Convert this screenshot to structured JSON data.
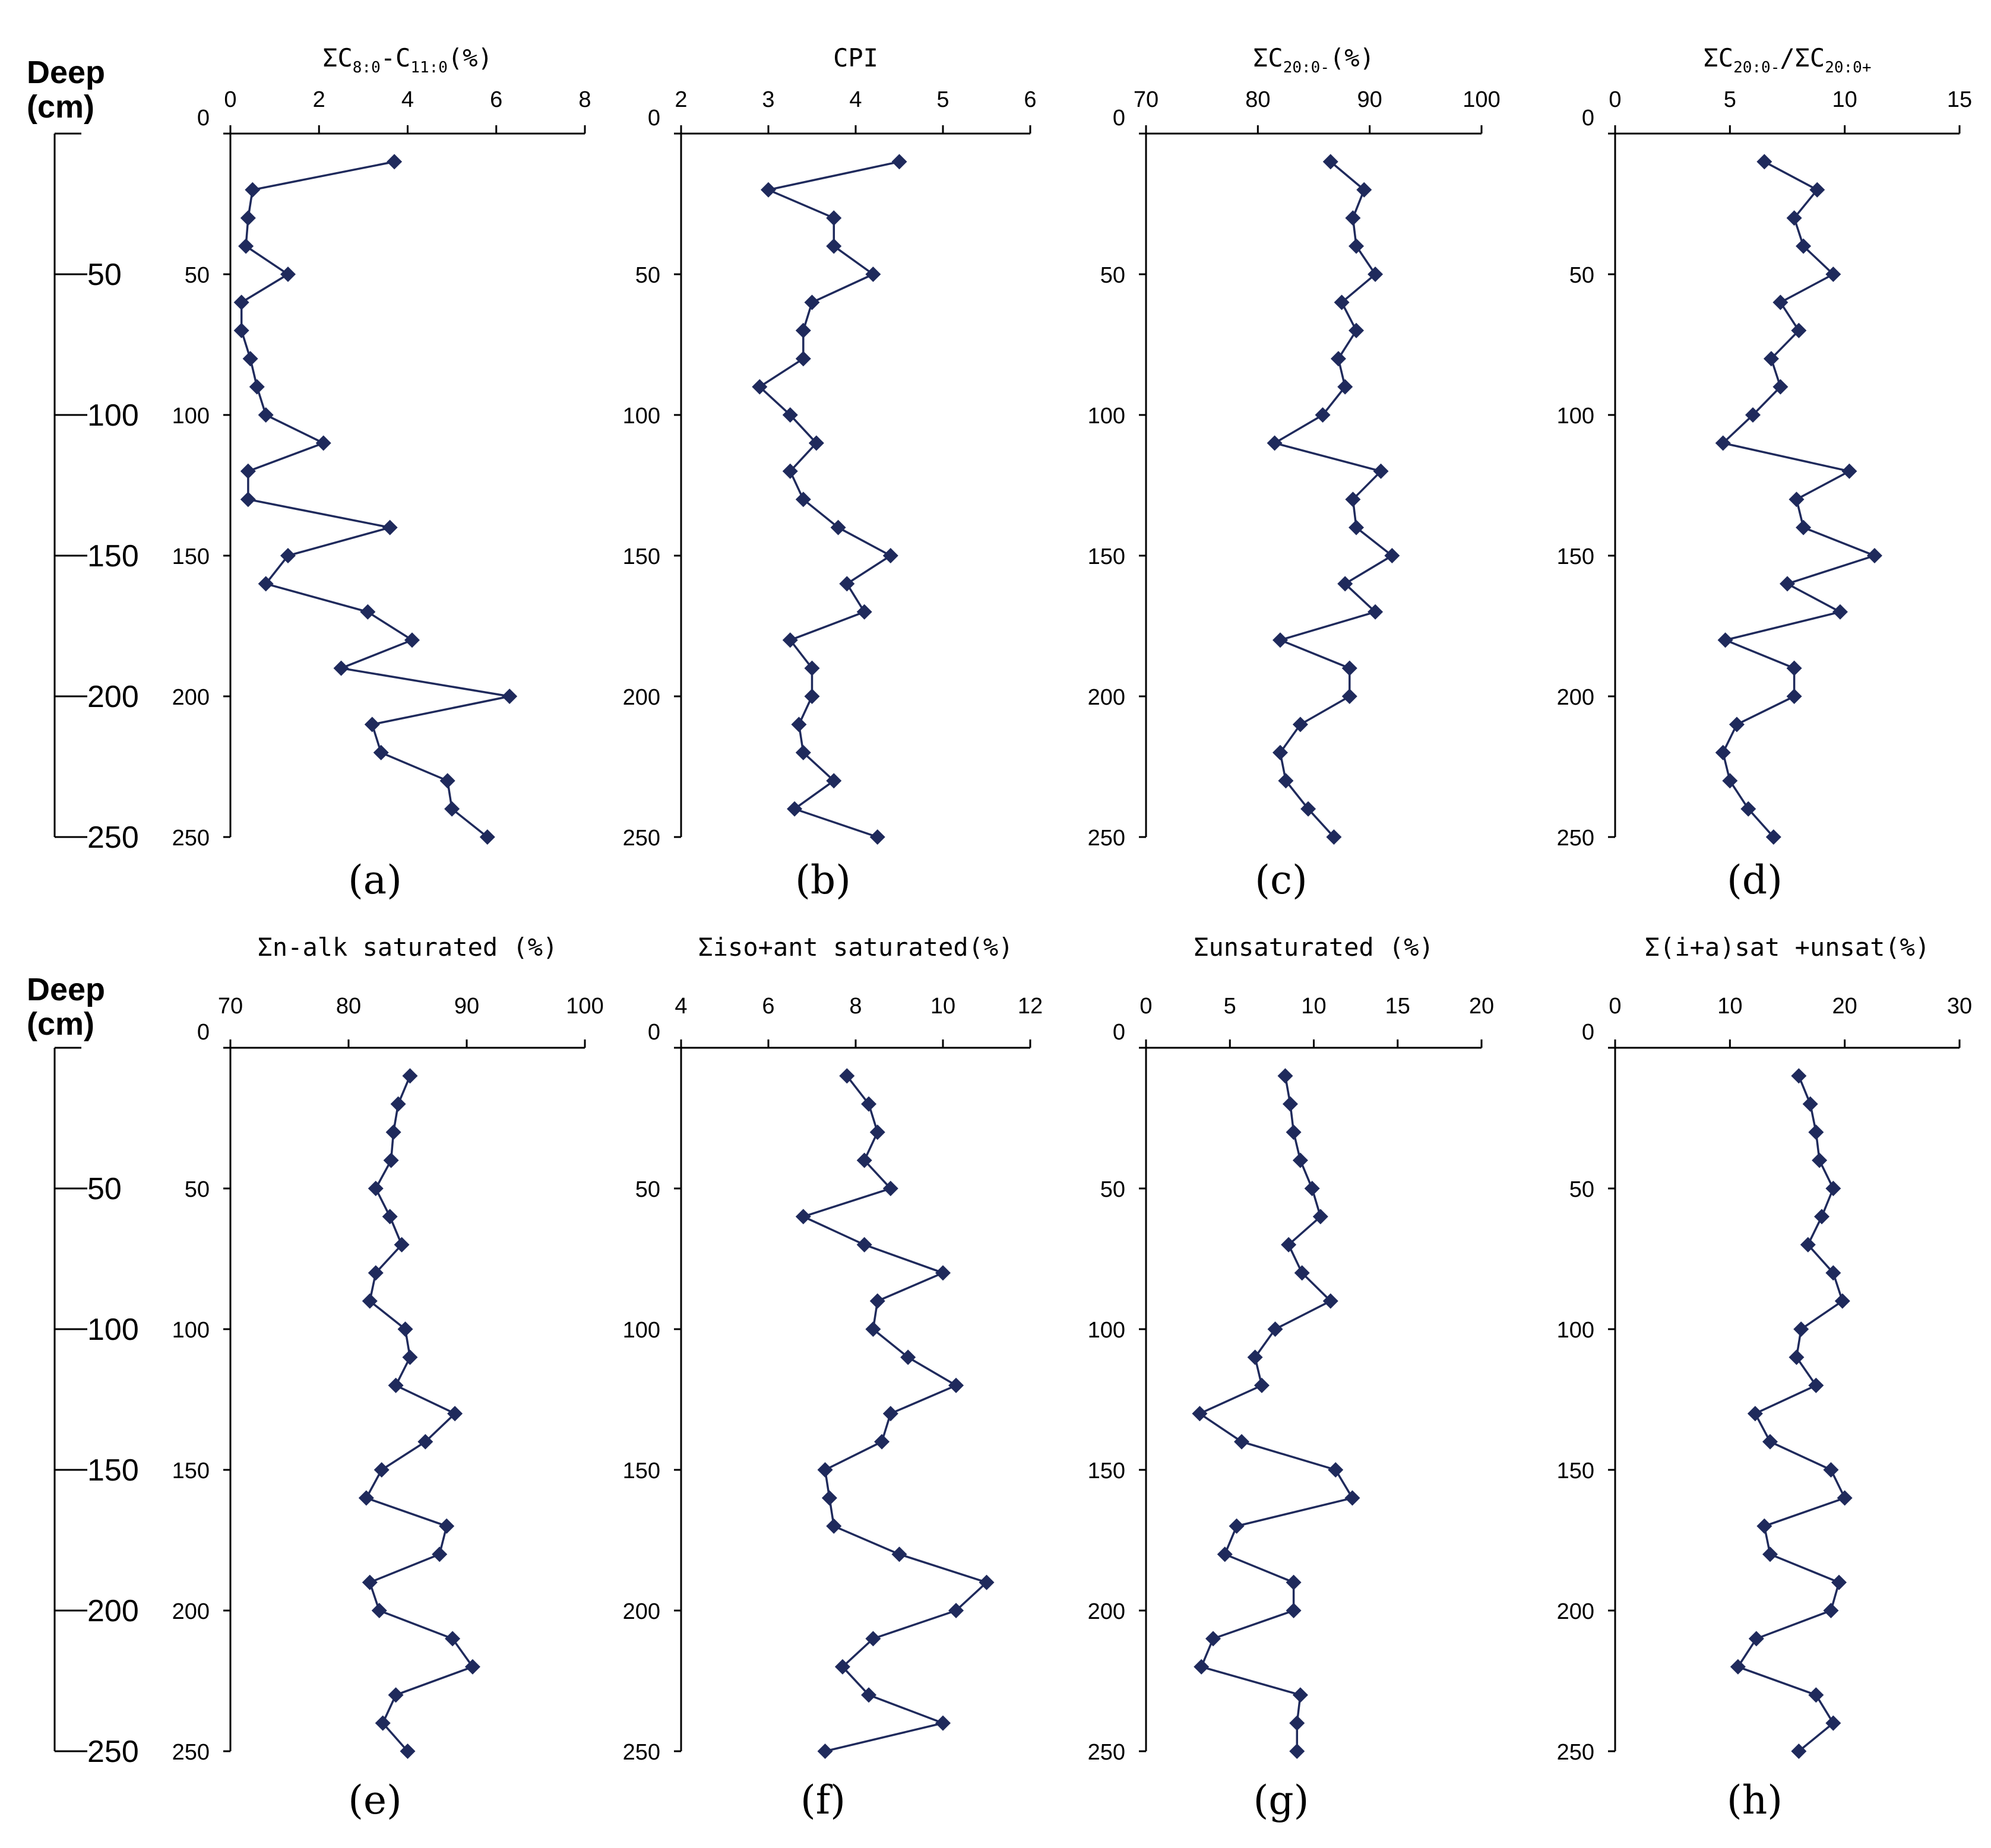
{
  "depth_axis": {
    "title_line1": "Deep",
    "title_line2": "(cm)",
    "ticks": [
      50,
      100,
      150,
      200,
      250
    ]
  },
  "colors": {
    "series": "#1f2a5c",
    "axis": "#000000"
  },
  "chart_data": [
    {
      "type": "line",
      "id": "a",
      "letter": "(a)",
      "title": "ΣC8:0-C11:0(%)",
      "title_parts": [
        {
          "t": "ΣC"
        },
        {
          "t": "8:0",
          "sub": true
        },
        {
          "t": "-C"
        },
        {
          "t": "11:0",
          "sub": true
        },
        {
          "t": "(%)"
        }
      ],
      "xlim": [
        0,
        8
      ],
      "xticks": [
        0,
        2,
        4,
        6,
        8
      ],
      "ylim": [
        0,
        250
      ],
      "yticks": [
        0,
        50,
        100,
        150,
        200,
        250
      ],
      "depth": [
        10,
        20,
        30,
        40,
        50,
        60,
        70,
        80,
        90,
        100,
        110,
        120,
        130,
        140,
        150,
        160,
        170,
        180,
        190,
        200,
        210,
        220,
        230,
        240,
        250
      ],
      "values": [
        3.7,
        0.5,
        0.4,
        0.35,
        1.3,
        0.25,
        0.25,
        0.45,
        0.6,
        0.8,
        2.1,
        0.4,
        0.4,
        3.6,
        1.3,
        0.8,
        3.1,
        4.1,
        2.5,
        6.3,
        3.2,
        3.4,
        4.9,
        5.0,
        5.8
      ]
    },
    {
      "type": "line",
      "id": "b",
      "letter": "(b)",
      "title": "CPI",
      "title_parts": [
        {
          "t": "CPI"
        }
      ],
      "xlim": [
        2,
        6
      ],
      "xticks": [
        2,
        3,
        4,
        5,
        6
      ],
      "ylim": [
        0,
        250
      ],
      "yticks": [
        0,
        50,
        100,
        150,
        200,
        250
      ],
      "depth": [
        10,
        20,
        30,
        40,
        50,
        60,
        70,
        80,
        90,
        100,
        110,
        120,
        130,
        140,
        150,
        160,
        170,
        180,
        190,
        200,
        210,
        220,
        230,
        240,
        250
      ],
      "values": [
        4.5,
        3.0,
        3.75,
        3.75,
        4.2,
        3.5,
        3.4,
        3.4,
        2.9,
        3.25,
        3.55,
        3.25,
        3.4,
        3.8,
        4.4,
        3.9,
        4.1,
        3.25,
        3.5,
        3.5,
        3.35,
        3.4,
        3.75,
        3.3,
        4.25
      ]
    },
    {
      "type": "line",
      "id": "c",
      "letter": "(c)",
      "title": "ΣC20:0-(%)",
      "title_parts": [
        {
          "t": "ΣC"
        },
        {
          "t": "20:0-",
          "sub": true
        },
        {
          "t": "(%)"
        }
      ],
      "xlim": [
        70,
        100
      ],
      "xticks": [
        70,
        80,
        90,
        100
      ],
      "ylim": [
        0,
        250
      ],
      "yticks": [
        0,
        50,
        100,
        150,
        200,
        250
      ],
      "depth": [
        10,
        20,
        30,
        40,
        50,
        60,
        70,
        80,
        90,
        100,
        110,
        120,
        130,
        140,
        150,
        160,
        170,
        180,
        190,
        200,
        210,
        220,
        230,
        240,
        250
      ],
      "values": [
        86.5,
        89.5,
        88.5,
        88.8,
        90.5,
        87.5,
        88.8,
        87.2,
        87.8,
        85.8,
        81.5,
        91.0,
        88.5,
        88.8,
        92.0,
        87.8,
        90.5,
        82.0,
        88.2,
        88.2,
        83.8,
        82.0,
        82.5,
        84.5,
        86.8
      ]
    },
    {
      "type": "line",
      "id": "d",
      "letter": "(d)",
      "title": "ΣC20:0-/ΣC20:0+",
      "title_parts": [
        {
          "t": "ΣC"
        },
        {
          "t": "20:0-",
          "sub": true
        },
        {
          "t": "/ΣC"
        },
        {
          "t": "20:0+",
          "sub": true
        }
      ],
      "xlim": [
        0,
        15
      ],
      "xticks": [
        0,
        5,
        10,
        15
      ],
      "ylim": [
        0,
        250
      ],
      "yticks": [
        0,
        50,
        100,
        150,
        200,
        250
      ],
      "depth": [
        10,
        20,
        30,
        40,
        50,
        60,
        70,
        80,
        90,
        100,
        110,
        120,
        130,
        140,
        150,
        160,
        170,
        180,
        190,
        200,
        210,
        220,
        230,
        240,
        250
      ],
      "values": [
        6.5,
        8.8,
        7.8,
        8.2,
        9.5,
        7.2,
        8.0,
        6.8,
        7.2,
        6.0,
        4.7,
        10.2,
        7.9,
        8.2,
        11.3,
        7.5,
        9.8,
        4.8,
        7.8,
        7.8,
        5.3,
        4.7,
        5.0,
        5.8,
        6.9
      ]
    },
    {
      "type": "line",
      "id": "e",
      "letter": "(e)",
      "title": "Σn-alk saturated (%)",
      "title_parts": [
        {
          "t": "Σn-alk saturated (%)"
        }
      ],
      "xlim": [
        70,
        100
      ],
      "xticks": [
        70,
        80,
        90,
        100
      ],
      "ylim": [
        0,
        250
      ],
      "yticks": [
        0,
        50,
        100,
        150,
        200,
        250
      ],
      "depth": [
        10,
        20,
        30,
        40,
        50,
        60,
        70,
        80,
        90,
        100,
        110,
        120,
        130,
        140,
        150,
        160,
        170,
        180,
        190,
        200,
        210,
        220,
        230,
        240,
        250
      ],
      "values": [
        85.2,
        84.2,
        83.8,
        83.6,
        82.3,
        83.5,
        84.5,
        82.3,
        81.8,
        84.8,
        85.2,
        84.0,
        89.0,
        86.5,
        82.8,
        81.5,
        88.3,
        87.7,
        81.8,
        82.6,
        88.8,
        90.5,
        84.0,
        82.9,
        85.0
      ]
    },
    {
      "type": "line",
      "id": "f",
      "letter": "(f)",
      "title": "Σiso+ant saturated(%)",
      "title_parts": [
        {
          "t": "Σiso+ant saturated(%)"
        }
      ],
      "xlim": [
        4,
        12
      ],
      "xticks": [
        4,
        6,
        8,
        10,
        12
      ],
      "ylim": [
        0,
        250
      ],
      "yticks": [
        0,
        50,
        100,
        150,
        200,
        250
      ],
      "depth": [
        10,
        20,
        30,
        40,
        50,
        60,
        70,
        80,
        90,
        100,
        110,
        120,
        130,
        140,
        150,
        160,
        170,
        180,
        190,
        200,
        210,
        220,
        230,
        240,
        250
      ],
      "values": [
        7.8,
        8.3,
        8.5,
        8.2,
        8.8,
        6.8,
        8.2,
        10.0,
        8.5,
        8.4,
        9.2,
        10.3,
        8.8,
        8.6,
        7.3,
        7.4,
        7.5,
        9.0,
        11.0,
        10.3,
        8.4,
        7.7,
        8.3,
        10.0,
        7.3
      ]
    },
    {
      "type": "line",
      "id": "g",
      "letter": "(g)",
      "title": "Σunsaturated (%)",
      "title_parts": [
        {
          "t": "Σunsaturated (%)"
        }
      ],
      "xlim": [
        0,
        20
      ],
      "xticks": [
        0,
        5,
        10,
        15,
        20
      ],
      "ylim": [
        0,
        250
      ],
      "yticks": [
        0,
        50,
        100,
        150,
        200,
        250
      ],
      "depth": [
        10,
        20,
        30,
        40,
        50,
        60,
        70,
        80,
        90,
        100,
        110,
        120,
        130,
        140,
        150,
        160,
        170,
        180,
        190,
        200,
        210,
        220,
        230,
        240,
        250
      ],
      "values": [
        8.3,
        8.6,
        8.8,
        9.2,
        9.9,
        10.4,
        8.5,
        9.3,
        11.0,
        7.7,
        6.5,
        6.9,
        3.2,
        5.7,
        11.3,
        12.3,
        5.4,
        4.7,
        8.8,
        8.8,
        4.0,
        3.3,
        9.2,
        9.0,
        9.0
      ]
    },
    {
      "type": "line",
      "id": "h",
      "letter": "(h)",
      "title": "Σ(i+a)sat +unsat(%)",
      "title_parts": [
        {
          "t": "Σ(i+a)sat +unsat(%)"
        }
      ],
      "xlim": [
        0,
        30
      ],
      "xticks": [
        0,
        10,
        20,
        30
      ],
      "ylim": [
        0,
        250
      ],
      "yticks": [
        0,
        50,
        100,
        150,
        200,
        250
      ],
      "depth": [
        10,
        20,
        30,
        40,
        50,
        60,
        70,
        80,
        90,
        100,
        110,
        120,
        130,
        140,
        150,
        160,
        170,
        180,
        190,
        200,
        210,
        220,
        230,
        240,
        250
      ],
      "values": [
        16.0,
        17.0,
        17.5,
        17.8,
        19.0,
        18.0,
        16.8,
        19.0,
        19.8,
        16.2,
        15.8,
        17.5,
        12.2,
        13.5,
        18.8,
        20.0,
        13.0,
        13.5,
        19.5,
        18.8,
        12.3,
        10.7,
        17.5,
        19.0,
        16.0
      ]
    }
  ]
}
